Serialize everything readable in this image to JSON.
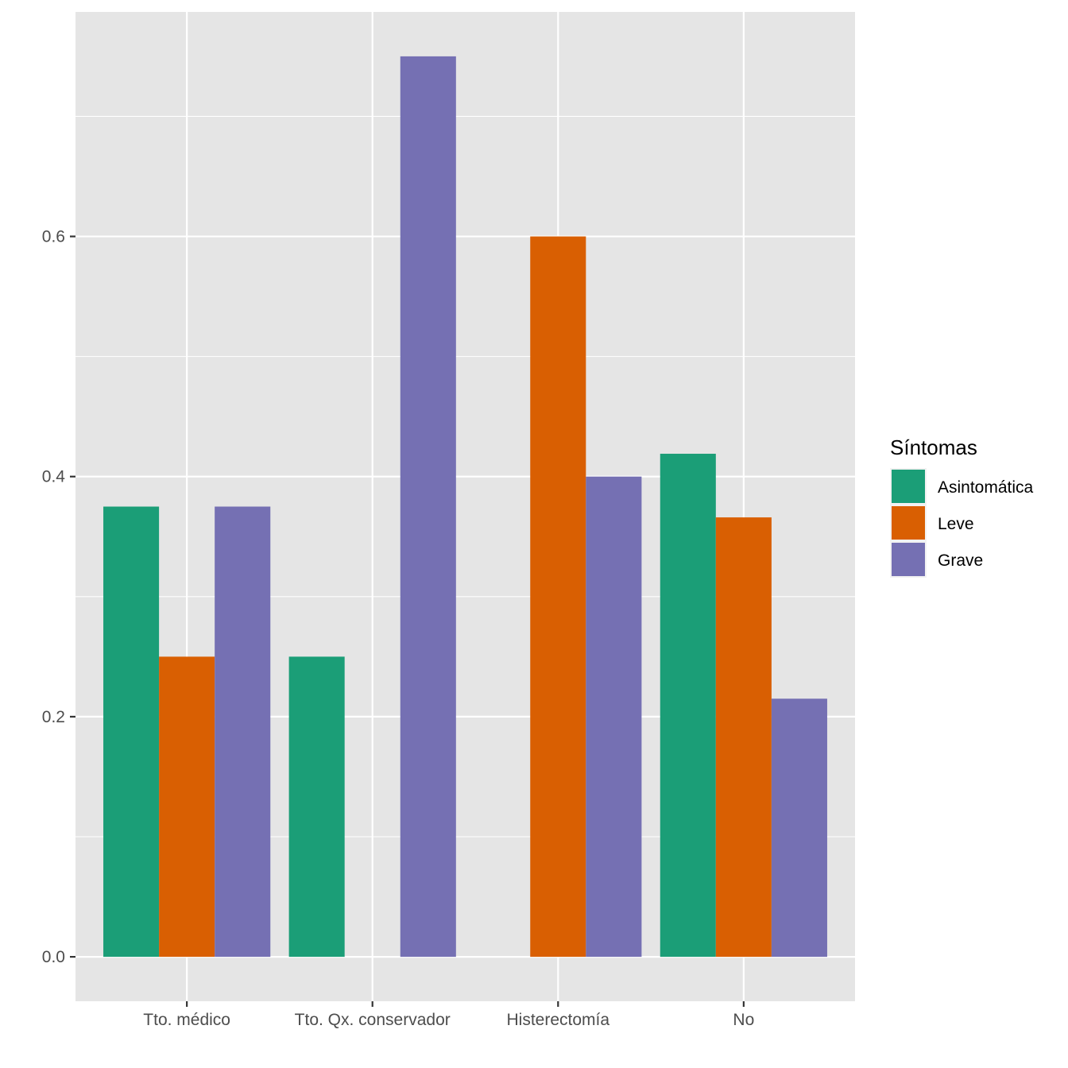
{
  "chart_data": {
    "type": "bar",
    "categories": [
      "Tto. médico",
      "Tto. Qx. conservador",
      "Histerectomía",
      "No"
    ],
    "series": [
      {
        "name": "Asintomática",
        "values": [
          0.375,
          0.25,
          0,
          0.419
        ],
        "color": "#1b9e77"
      },
      {
        "name": "Leve",
        "values": [
          0.25,
          0,
          0.6,
          0.366
        ],
        "color": "#d95f02"
      },
      {
        "name": "Grave",
        "values": [
          0.375,
          0.75,
          0.4,
          0.215
        ],
        "color": "#7570b3"
      }
    ],
    "ylim": [
      -0.037,
      0.787
    ],
    "yticks": [
      "0.0",
      "0.2",
      "0.4",
      "0.6"
    ],
    "ytick_values": [
      0,
      0.2,
      0.4,
      0.6
    ],
    "xlabel": "",
    "ylabel": "",
    "grid": true,
    "legend": {
      "title": "Síntomas",
      "position": "right"
    },
    "colors": {
      "panel": "#e5e5e5",
      "grid": "#ffffff",
      "tick_text": "#4d4d4d"
    }
  }
}
